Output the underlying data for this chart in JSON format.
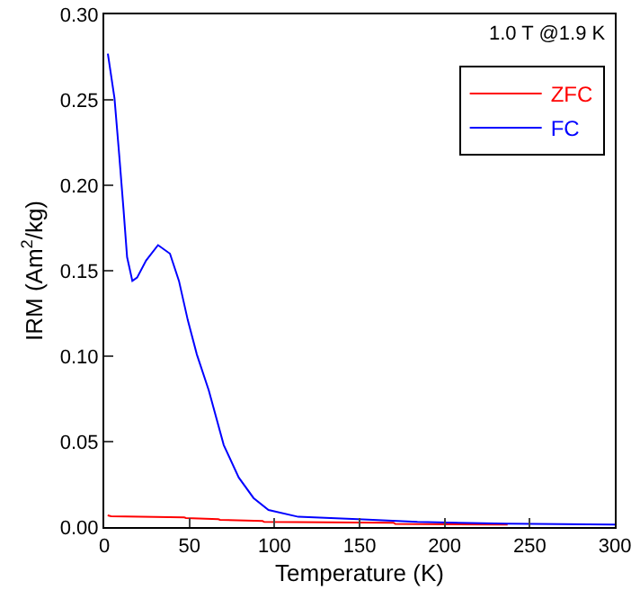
{
  "chart_data": {
    "type": "line",
    "xlabel": "Temperature (K)",
    "ylabel": "IRM (Am$^{2}$/kg)",
    "annotations": [
      "1.0 T @1.9 K"
    ],
    "xlim": [
      0,
      300
    ],
    "xticks": [
      0,
      50,
      100,
      150,
      200,
      250,
      300
    ],
    "ylim": [
      0,
      0.3
    ],
    "yticks": [
      {
        "value": 0,
        "label": "0.00"
      },
      {
        "value": 0.05,
        "label": "0.05"
      },
      {
        "value": 0.1,
        "label": "0.10"
      },
      {
        "value": 0.15,
        "label": "0.15"
      },
      {
        "value": 0.2,
        "label": "0.20"
      },
      {
        "value": 0.25,
        "label": "0.25"
      },
      {
        "value": 0.3,
        "label": "0.30"
      }
    ],
    "grid": false,
    "legend": "top right",
    "marker": "none",
    "line_style": "solid",
    "series": [
      {
        "name": "ZFC",
        "color": "#ff0000",
        "x": [
          2,
          4,
          47,
          48,
          67,
          68,
          93,
          94,
          170,
          171,
          237
        ],
        "values": [
          0.0068,
          0.0063,
          0.0056,
          0.0053,
          0.0046,
          0.0042,
          0.0035,
          0.003,
          0.0025,
          0.0018,
          0.0014
        ]
      },
      {
        "name": "FC",
        "color": "#0000ff",
        "x": [
          2.1,
          6,
          8.8,
          11.3,
          13.4,
          16.5,
          19.3,
          24.6,
          31.6,
          38.6,
          43.9,
          49.1,
          54.4,
          61.4,
          70.2,
          79,
          87.7,
          96.5,
          114,
          149,
          184,
          237,
          300
        ],
        "values": [
          0.277,
          0.251,
          0.2175,
          0.186,
          0.158,
          0.144,
          0.146,
          0.156,
          0.165,
          0.16,
          0.144,
          0.121,
          0.101,
          0.08,
          0.048,
          0.029,
          0.017,
          0.01,
          0.006,
          0.0046,
          0.003,
          0.002,
          0.0014
        ]
      }
    ]
  }
}
